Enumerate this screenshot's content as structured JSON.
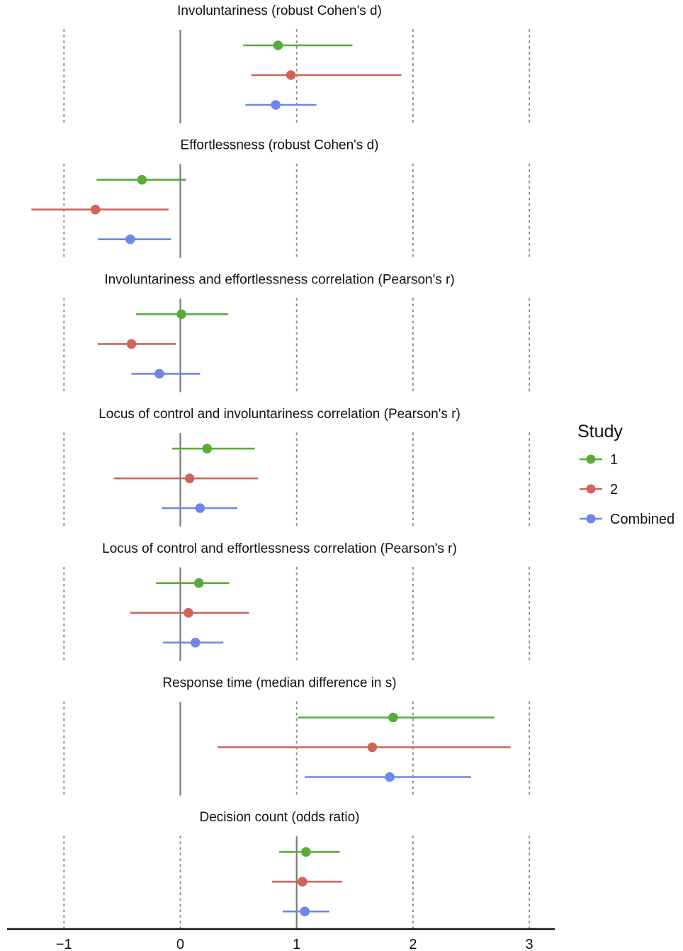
{
  "chart_data": {
    "type": "forest",
    "xlim": [
      -1.5,
      3.2
    ],
    "x_ticks": [
      -1,
      0,
      1,
      2,
      3
    ],
    "x_tick_labels": [
      "−1",
      "0",
      "1",
      "2",
      "3"
    ],
    "grid": "vertical dotted at ticks",
    "legend": {
      "title": "Study",
      "placement": "right",
      "entries": [
        {
          "name": "1",
          "color": "#59ab3a"
        },
        {
          "name": "2",
          "color": "#d0645b"
        },
        {
          "name": "Combined",
          "color": "#6f86ea"
        }
      ]
    },
    "panels": [
      {
        "title": "Involuntariness (robust Cohen's d)",
        "reference": 0,
        "estimates": [
          {
            "study": "1",
            "est": 0.84,
            "lo": 0.54,
            "hi": 1.48
          },
          {
            "study": "2",
            "est": 0.95,
            "lo": 0.61,
            "hi": 1.9
          },
          {
            "study": "Combined",
            "est": 0.82,
            "lo": 0.56,
            "hi": 1.17
          }
        ]
      },
      {
        "title": "Effortlessness (robust Cohen's d)",
        "reference": 0,
        "estimates": [
          {
            "study": "1",
            "est": -0.33,
            "lo": -0.72,
            "hi": 0.05
          },
          {
            "study": "2",
            "est": -0.73,
            "lo": -1.28,
            "hi": -0.1
          },
          {
            "study": "Combined",
            "est": -0.43,
            "lo": -0.71,
            "hi": -0.08
          }
        ]
      },
      {
        "title": "Involuntariness and effortlessness correlation (Pearson's r)",
        "reference": 0,
        "estimates": [
          {
            "study": "1",
            "est": 0.01,
            "lo": -0.38,
            "hi": 0.41
          },
          {
            "study": "2",
            "est": -0.42,
            "lo": -0.71,
            "hi": -0.04
          },
          {
            "study": "Combined",
            "est": -0.18,
            "lo": -0.42,
            "hi": 0.17
          }
        ]
      },
      {
        "title": "Locus of control and involuntariness correlation (Pearson's r)",
        "reference": 0,
        "estimates": [
          {
            "study": "1",
            "est": 0.23,
            "lo": -0.07,
            "hi": 0.64
          },
          {
            "study": "2",
            "est": 0.08,
            "lo": -0.57,
            "hi": 0.67
          },
          {
            "study": "Combined",
            "est": 0.17,
            "lo": -0.16,
            "hi": 0.49
          }
        ]
      },
      {
        "title": "Locus of control and effortlessness correlation (Pearson's r)",
        "reference": 0,
        "estimates": [
          {
            "study": "1",
            "est": 0.16,
            "lo": -0.21,
            "hi": 0.42
          },
          {
            "study": "2",
            "est": 0.07,
            "lo": -0.43,
            "hi": 0.59
          },
          {
            "study": "Combined",
            "est": 0.13,
            "lo": -0.15,
            "hi": 0.37
          }
        ]
      },
      {
        "title": "Response time (median difference in s)",
        "reference": 0,
        "estimates": [
          {
            "study": "1",
            "est": 1.83,
            "lo": 1.01,
            "hi": 2.7
          },
          {
            "study": "2",
            "est": 1.65,
            "lo": 0.32,
            "hi": 2.84
          },
          {
            "study": "Combined",
            "est": 1.8,
            "lo": 1.07,
            "hi": 2.5
          }
        ]
      },
      {
        "title": "Decision count (odds ratio)",
        "reference": 1,
        "estimates": [
          {
            "study": "1",
            "est": 1.08,
            "lo": 0.85,
            "hi": 1.37
          },
          {
            "study": "2",
            "est": 1.05,
            "lo": 0.79,
            "hi": 1.39
          },
          {
            "study": "Combined",
            "est": 1.07,
            "lo": 0.88,
            "hi": 1.28
          }
        ]
      }
    ]
  }
}
